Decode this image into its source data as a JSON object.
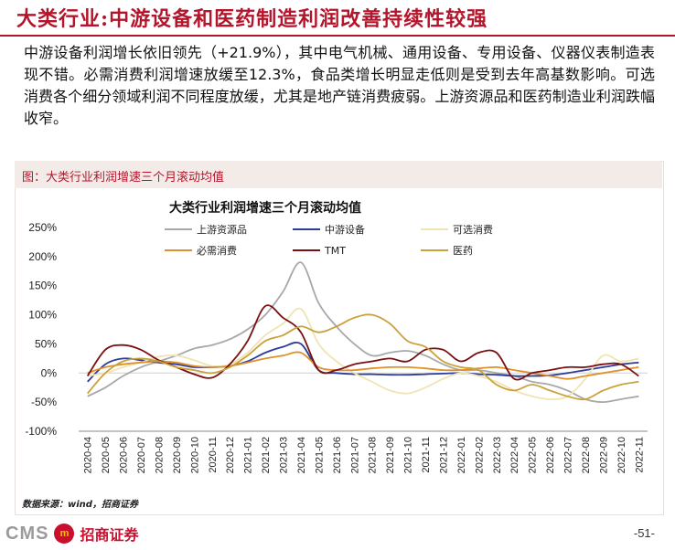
{
  "title": "大类行业:中游设备和医药制造利润改善持续性较强",
  "summary": "中游设备利润增长依旧领先（+21.9%），其中电气机械、通用设备、专用设备、仪器仪表制造表现不错。必需消费利润增速放缓至12.3%，食品类增长明显走低则是受到去年高基数影响。可选消费各个细分领域利润不同程度放缓，尤其是地产链消费疲弱。上游资源品和医药制造业利润跌幅收窄。",
  "figure_caption": "图：大类行业利润增速三个月滚动均值",
  "source": "数据来源：wind，招商证券",
  "footer": {
    "brand_en": "CMS",
    "brand_mark": "m",
    "brand_cn": "招商证券",
    "page_number": "-51-"
  },
  "colors": {
    "accent": "#b5152b",
    "上游资源品": "#a8a8a8",
    "中游设备": "#2b3c9e",
    "可选消费": "#f0e4b4",
    "必需消费": "#e0902a",
    "TMT": "#7a1010",
    "医药": "#c9a23a"
  },
  "chart_data": {
    "type": "line",
    "title": "大类行业利润增速三个月滚动均值",
    "xlabel": "",
    "ylabel": "",
    "ylim": [
      -100,
      250
    ],
    "y_ticks": [
      "250%",
      "200%",
      "150%",
      "100%",
      "50%",
      "0%",
      "-50%",
      "-100%"
    ],
    "y_tick_values": [
      250,
      200,
      150,
      100,
      50,
      0,
      -50,
      -100
    ],
    "grid": false,
    "legend_position": "top",
    "x": [
      "2020-04",
      "2020-05",
      "2020-06",
      "2020-07",
      "2020-08",
      "2020-09",
      "2020-10",
      "2020-11",
      "2020-12",
      "2021-01",
      "2021-02",
      "2021-03",
      "2021-04",
      "2021-05",
      "2021-06",
      "2021-07",
      "2021-08",
      "2021-09",
      "2021-10",
      "2021-11",
      "2021-12",
      "2022-01",
      "2022-02",
      "2022-03",
      "2022-04",
      "2022-05",
      "2022-06",
      "2022-07",
      "2022-08",
      "2022-09",
      "2022-10",
      "2022-11"
    ],
    "series": [
      {
        "name": "上游资源品",
        "values": [
          -40,
          -25,
          -5,
          10,
          20,
          30,
          42,
          48,
          58,
          75,
          100,
          140,
          190,
          120,
          80,
          50,
          30,
          35,
          38,
          30,
          15,
          5,
          5,
          0,
          -5,
          -15,
          -20,
          -30,
          -45,
          -50,
          -45,
          -40
        ]
      },
      {
        "name": "中游设备",
        "values": [
          -15,
          15,
          25,
          22,
          18,
          15,
          10,
          10,
          12,
          20,
          35,
          45,
          50,
          5,
          0,
          -2,
          -2,
          -3,
          -3,
          -2,
          -1,
          0,
          -2,
          -3,
          -5,
          -5,
          -4,
          0,
          5,
          10,
          15,
          18
        ]
      },
      {
        "name": "可选消费",
        "values": [
          -5,
          0,
          10,
          18,
          28,
          30,
          22,
          12,
          15,
          35,
          65,
          85,
          110,
          50,
          20,
          0,
          -15,
          -30,
          -35,
          -25,
          -10,
          0,
          -5,
          -15,
          -30,
          -40,
          -45,
          -40,
          -10,
          30,
          20,
          25
        ]
      },
      {
        "name": "必需消费",
        "values": [
          0,
          10,
          15,
          18,
          20,
          18,
          12,
          10,
          12,
          18,
          25,
          30,
          35,
          10,
          5,
          5,
          8,
          10,
          10,
          8,
          5,
          5,
          8,
          10,
          5,
          0,
          -5,
          -10,
          -5,
          0,
          5,
          10
        ]
      },
      {
        "name": "TMT",
        "values": [
          -5,
          40,
          48,
          40,
          22,
          10,
          -2,
          -8,
          15,
          55,
          115,
          95,
          70,
          5,
          5,
          15,
          20,
          25,
          20,
          40,
          40,
          20,
          35,
          35,
          -10,
          0,
          5,
          10,
          10,
          15,
          15,
          -5
        ]
      },
      {
        "name": "医药",
        "values": [
          -35,
          0,
          20,
          25,
          20,
          10,
          5,
          0,
          10,
          30,
          55,
          65,
          80,
          70,
          80,
          95,
          100,
          85,
          55,
          45,
          20,
          10,
          5,
          -20,
          -30,
          -20,
          -30,
          -40,
          -45,
          -30,
          -20,
          -15
        ]
      }
    ]
  }
}
